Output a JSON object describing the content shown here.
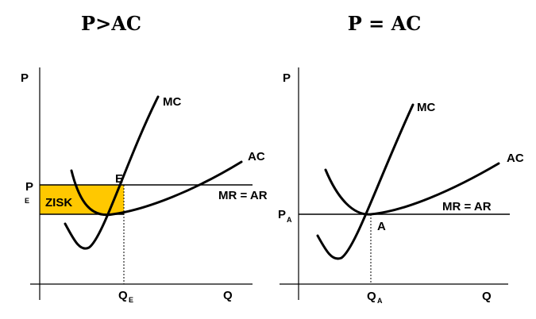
{
  "left": {
    "title": "P>AC",
    "y_axis": "P",
    "x_axis": "Q",
    "mc": "MC",
    "ac": "AC",
    "mr": "MR = AR",
    "point": "E",
    "profit": "ZISK",
    "p_main": "P",
    "p_sub": "E",
    "q_main": "Q",
    "q_sub": "E",
    "profit_color": "#FFC800"
  },
  "right": {
    "title": "P = AC",
    "y_axis": "P",
    "x_axis": "Q",
    "mc": "MC",
    "ac": "AC",
    "mr": "MR = AR",
    "point": "A",
    "p_main": "P",
    "p_sub": "A",
    "q_main": "Q",
    "q_sub": "A"
  }
}
